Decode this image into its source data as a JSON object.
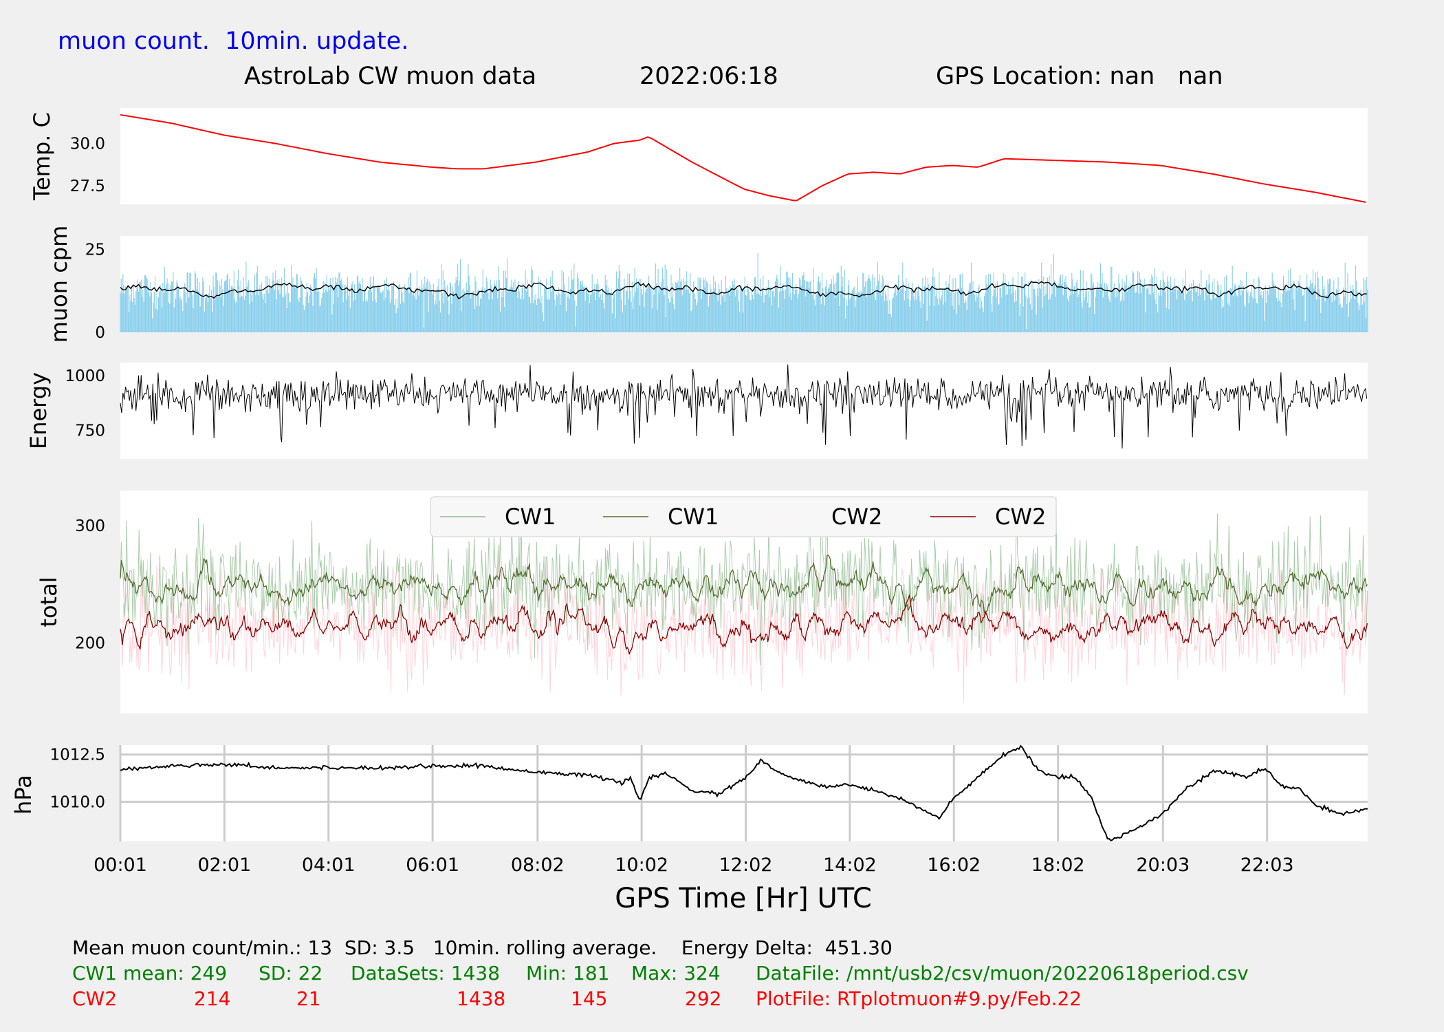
{
  "header": {
    "subtitle": "muon count.  10min. update.",
    "title": "AstroLab CW muon data",
    "date": "2022:06:18",
    "gps": "GPS Location: nan   nan"
  },
  "colors": {
    "subtitle": "#0000ee",
    "temp": "#ff0000",
    "muon_bars": "#87ceeb",
    "muon_avg": "#000000",
    "energy": "#000000",
    "cw1_raw": "#8fbc8f",
    "cw1_avg": "#556b2f",
    "cw2_raw": "#ffc0cb",
    "cw2_avg": "#8b0000",
    "pressure": "#000000",
    "stats_cw1": "#008000",
    "stats_cw2": "#ff0000"
  },
  "chart_data": [
    {
      "type": "line",
      "name": "temperature",
      "ylabel": "Temp. C",
      "yticks": [
        27.5,
        30.0
      ],
      "ylim": [
        26.4,
        32.1
      ],
      "x": [
        "00:01",
        "01:00",
        "02:00",
        "03:00",
        "04:00",
        "05:00",
        "06:00",
        "06:30",
        "07:00",
        "08:00",
        "09:00",
        "09:30",
        "10:00",
        "10:10",
        "10:30",
        "11:00",
        "11:30",
        "12:00",
        "12:30",
        "13:00",
        "13:30",
        "14:00",
        "14:30",
        "15:00",
        "15:30",
        "16:00",
        "16:30",
        "17:00",
        "18:00",
        "19:00",
        "20:00",
        "21:00",
        "22:00",
        "23:00",
        "23:59"
      ],
      "values": [
        31.7,
        31.2,
        30.5,
        30.0,
        29.4,
        28.9,
        28.6,
        28.5,
        28.5,
        28.9,
        29.5,
        30.0,
        30.2,
        30.4,
        29.8,
        28.9,
        28.1,
        27.3,
        26.9,
        26.6,
        27.5,
        28.2,
        28.3,
        28.2,
        28.6,
        28.7,
        28.6,
        29.1,
        29.0,
        28.9,
        28.7,
        28.2,
        27.6,
        27.1,
        26.5
      ]
    },
    {
      "type": "bar",
      "name": "muon cpm",
      "ylabel": "muon cpm",
      "yticks": [
        0,
        25
      ],
      "ylim": [
        0,
        29
      ],
      "mean": 13,
      "sd": 3.5,
      "rolling": "10min",
      "avg_x": [
        "00:01",
        "02:00",
        "04:00",
        "06:00",
        "08:00",
        "10:00",
        "12:00",
        "14:00",
        "16:00",
        "18:00",
        "20:00",
        "22:00",
        "23:59"
      ],
      "avg_values": [
        13,
        12,
        14,
        12,
        13,
        13,
        13,
        12,
        13,
        14,
        13,
        13,
        12
      ]
    },
    {
      "type": "line",
      "name": "energy",
      "ylabel": "Energy",
      "yticks": [
        750,
        1000
      ],
      "ylim": [
        620,
        1060
      ],
      "delta": 451.3
    },
    {
      "type": "line",
      "name": "total",
      "ylabel": "total",
      "yticks": [
        200,
        300
      ],
      "ylim": [
        140,
        330
      ],
      "legend": {
        "placement": "upper-center",
        "entries": [
          "CW1",
          "CW1",
          "CW2",
          "CW2"
        ]
      },
      "series": [
        {
          "name": "CW1",
          "mean": 249,
          "sd": 22,
          "datasets": 1438,
          "min": 181,
          "max": 324
        },
        {
          "name": "CW2",
          "mean": 214,
          "sd": 21,
          "datasets": 1438,
          "min": 145,
          "max": 292
        }
      ]
    },
    {
      "type": "line",
      "name": "pressure",
      "ylabel": "hPa",
      "yticks": [
        1010.0,
        1012.5
      ],
      "ylim": [
        1007.9,
        1013.0
      ],
      "grid": true,
      "x": [
        "00:01",
        "01:00",
        "02:00",
        "03:00",
        "04:00",
        "05:00",
        "06:00",
        "07:00",
        "07:30",
        "08:00",
        "09:00",
        "09:40",
        "09:50",
        "10:00",
        "10:10",
        "10:30",
        "11:00",
        "11:30",
        "12:00",
        "12:20",
        "12:40",
        "13:00",
        "13:30",
        "14:00",
        "14:30",
        "15:00",
        "15:30",
        "15:45",
        "16:00",
        "16:30",
        "17:00",
        "17:20",
        "17:40",
        "18:00",
        "18:20",
        "18:40",
        "19:00",
        "19:20",
        "19:40",
        "20:00",
        "20:30",
        "21:00",
        "21:20",
        "21:40",
        "22:00",
        "22:20",
        "22:40",
        "23:00",
        "23:30",
        "23:59"
      ],
      "values": [
        1011.7,
        1011.9,
        1012.0,
        1011.8,
        1011.8,
        1011.8,
        1011.9,
        1011.9,
        1011.7,
        1011.6,
        1011.4,
        1011.0,
        1011.3,
        1010.0,
        1011.2,
        1011.5,
        1010.6,
        1010.4,
        1011.2,
        1012.2,
        1011.5,
        1011.2,
        1010.8,
        1010.9,
        1010.6,
        1010.2,
        1009.5,
        1009.1,
        1010.1,
        1011.3,
        1012.5,
        1012.9,
        1011.6,
        1011.3,
        1011.3,
        1010.3,
        1007.9,
        1008.3,
        1008.8,
        1009.3,
        1010.7,
        1011.6,
        1011.5,
        1011.3,
        1011.8,
        1010.8,
        1010.7,
        1009.8,
        1009.3,
        1009.6
      ]
    }
  ],
  "xaxis": {
    "label": "GPS Time  [Hr] UTC",
    "ticks": [
      "00:01",
      "02:01",
      "04:01",
      "06:01",
      "08:02",
      "10:02",
      "12:02",
      "14:02",
      "16:02",
      "18:02",
      "20:03",
      "22:03"
    ]
  },
  "stats": {
    "line1": "Mean muon count/min.: 13  SD: 3.5   10min. rolling average.    Energy Delta:  451.30",
    "cw1_label": "CW1 mean: 249",
    "cw1_sd": "SD: 22",
    "cw1_datasets": "DataSets: 1438",
    "cw1_min": "Min: 181",
    "cw1_max": "Max: 324",
    "datafile": "DataFile: /mnt/usb2/csv/muon/20220618period.csv",
    "cw2_label": "CW2",
    "cw2_mean": "214",
    "cw2_sd": "21",
    "cw2_datasets": "1438",
    "cw2_min": "145",
    "cw2_max": "292",
    "plotfile": "PlotFile: RTplotmuon#9.py/Feb.22"
  }
}
